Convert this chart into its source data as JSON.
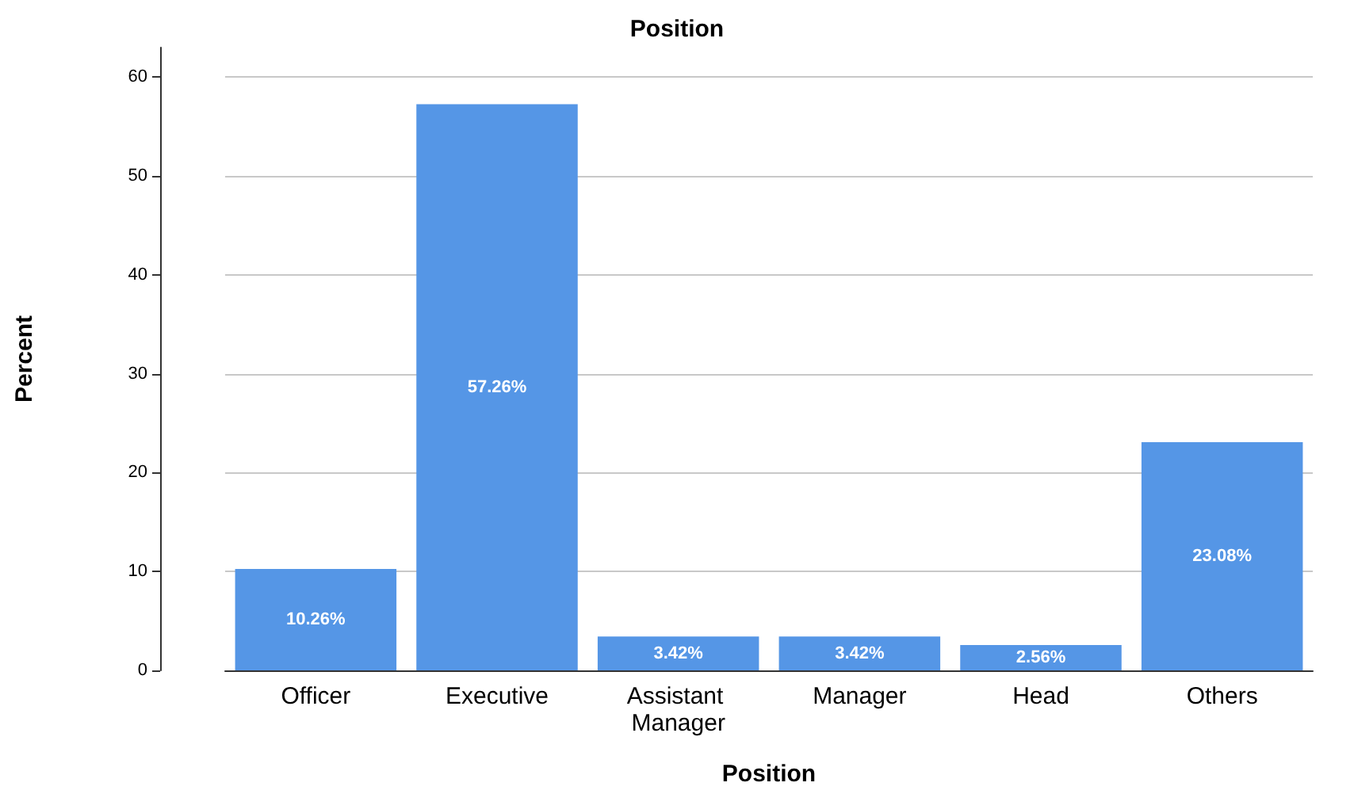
{
  "chart_data": {
    "type": "bar",
    "title": "Position",
    "xlabel": "Position",
    "ylabel": "Percent",
    "categories": [
      "Officer",
      "Executive",
      "Assistant Manager",
      "Manager",
      "Head",
      "Others"
    ],
    "values": [
      10.26,
      57.26,
      3.42,
      3.42,
      2.56,
      23.08
    ],
    "value_labels": [
      "10.26%",
      "57.26%",
      "3.42%",
      "3.42%",
      "2.56%",
      "23.08%"
    ],
    "color": "#5596e6",
    "ylim": [
      0,
      63
    ],
    "yticks": [
      0,
      10,
      20,
      30,
      40,
      50,
      60
    ],
    "grid": "y"
  }
}
